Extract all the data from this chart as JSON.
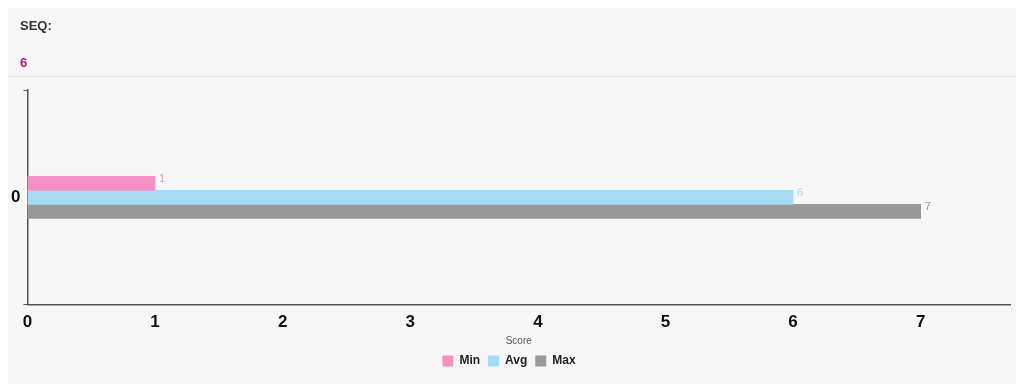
{
  "chart_data": {
    "type": "bar",
    "orientation": "horizontal",
    "title": "SEQ:",
    "subtitle": "6",
    "xlabel": "Score",
    "categories": [
      "0"
    ],
    "series": [
      {
        "name": "Min",
        "color": "#f490c4",
        "values": [
          1
        ]
      },
      {
        "name": "Avg",
        "color": "#a5dbf5",
        "values": [
          6
        ]
      },
      {
        "name": "Max",
        "color": "#999999",
        "values": [
          7
        ]
      }
    ],
    "xlim": [
      0,
      7.7
    ],
    "xticks": [
      0,
      1,
      2,
      3,
      4,
      5,
      6,
      7
    ],
    "grid": false,
    "legend": "bottom",
    "data_labels": true
  }
}
